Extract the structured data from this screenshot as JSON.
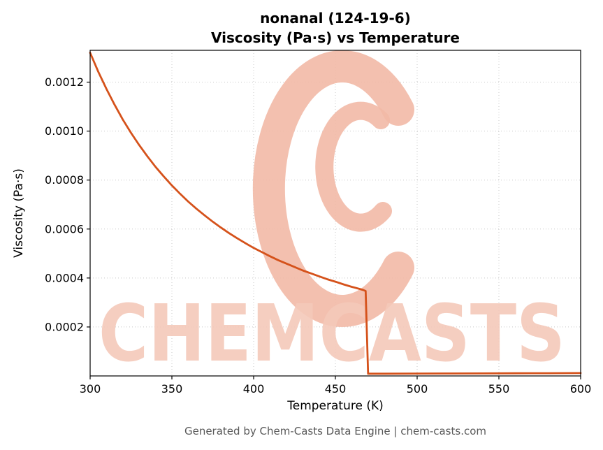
{
  "header": {
    "title_line1": "nonanal (124-19-6)",
    "title_line2": "Viscosity (Pa·s) vs Temperature"
  },
  "footer": {
    "credit": "Generated by Chem-Casts Data Engine | chem-casts.com"
  },
  "watermark": {
    "text": "CHEMCASTS",
    "text_color": "#f5c9ba",
    "logo_color": "#f2b9a6",
    "opacity": 0.9
  },
  "chart_data": {
    "type": "line",
    "title": "nonanal (124-19-6)\nViscosity (Pa·s) vs Temperature",
    "xlabel": "Temperature (K)",
    "ylabel": "Viscosity (Pa·s)",
    "xlim": [
      300,
      600
    ],
    "ylim": [
      0,
      0.00133
    ],
    "xticks": [
      300,
      350,
      400,
      450,
      500,
      550,
      600
    ],
    "xtick_labels": [
      "300",
      "350",
      "400",
      "450",
      "500",
      "550",
      "600"
    ],
    "yticks": [
      0.0002,
      0.0004,
      0.0006,
      0.0008,
      0.001,
      0.0012
    ],
    "ytick_labels": [
      "0.0002",
      "0.0004",
      "0.0006",
      "0.0008",
      "0.0010",
      "0.0012"
    ],
    "grid": true,
    "grid_color": "#c8c8c8",
    "axis_color": "#000000",
    "line_color": "#d5521b",
    "legend": "none",
    "series": [
      {
        "name": "viscosity",
        "points": [
          [
            300,
            0.00132
          ],
          [
            305,
            0.001242
          ],
          [
            310,
            0.001172
          ],
          [
            315,
            0.001107
          ],
          [
            320,
            0.001047
          ],
          [
            325,
            0.000993
          ],
          [
            330,
            0.000943
          ],
          [
            335,
            0.000897
          ],
          [
            340,
            0.000854
          ],
          [
            345,
            0.000815
          ],
          [
            350,
            0.000778
          ],
          [
            355,
            0.000744
          ],
          [
            360,
            0.000712
          ],
          [
            365,
            0.000683
          ],
          [
            370,
            0.000656
          ],
          [
            375,
            0.00063
          ],
          [
            380,
            0.000606
          ],
          [
            385,
            0.000583
          ],
          [
            390,
            0.000562
          ],
          [
            395,
            0.000542
          ],
          [
            400,
            0.000523
          ],
          [
            405,
            0.000506
          ],
          [
            410,
            0.000489
          ],
          [
            415,
            0.000473
          ],
          [
            420,
            0.000459
          ],
          [
            425,
            0.000445
          ],
          [
            430,
            0.000431
          ],
          [
            435,
            0.000419
          ],
          [
            440,
            0.000407
          ],
          [
            445,
            0.000395
          ],
          [
            450,
            0.000385
          ],
          [
            455,
            0.000374
          ],
          [
            460,
            0.000364
          ],
          [
            465,
            0.000355
          ],
          [
            467,
            0.000351
          ],
          [
            468.5,
            0.000347
          ],
          [
            470,
            9e-06
          ],
          [
            480,
            9.2e-06
          ],
          [
            500,
            9.6e-06
          ],
          [
            520,
            1e-05
          ],
          [
            540,
            1.04e-05
          ],
          [
            560,
            1.08e-05
          ],
          [
            580,
            1.12e-05
          ],
          [
            600,
            1.16e-05
          ]
        ]
      }
    ]
  }
}
